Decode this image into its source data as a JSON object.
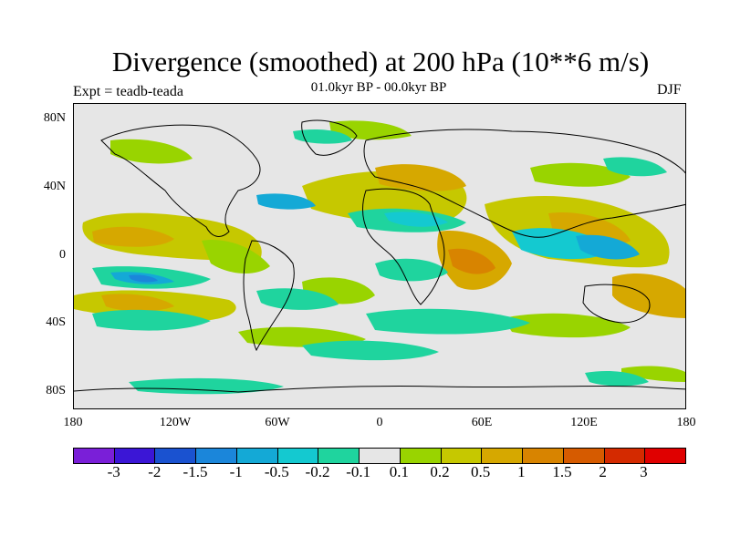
{
  "title": "Divergence (smoothed) at 200 hPa (10**6 m/s)",
  "subtitle": "01.0kyr BP - 00.0kyr BP",
  "experiment": "Expt = teadb-teada",
  "season": "DJF",
  "colors": {
    "background": "#e6e6e6",
    "coast": "#000000",
    "levels": [
      "#7a1fd8",
      "#3b16d6",
      "#1a52d0",
      "#1b86da",
      "#14a9d6",
      "#14c9d0",
      "#1fd49e",
      "#e6e6e6",
      "#99d400",
      "#c6c800",
      "#d6a800",
      "#d88400",
      "#d65b00",
      "#d42a00",
      "#e00000"
    ]
  },
  "axes": {
    "lat_labels": [
      "80N",
      "40N",
      "0",
      "40S",
      "80S"
    ],
    "lon_labels": [
      "180",
      "120W",
      "60W",
      "0",
      "60E",
      "120E",
      "180"
    ]
  },
  "colorbar": {
    "labels": [
      "-3",
      "-2",
      "-1.5",
      "-1",
      "-0.5",
      "-0.2",
      "-0.1",
      "0.1",
      "0.2",
      "0.5",
      "1",
      "1.5",
      "2",
      "3"
    ]
  }
}
